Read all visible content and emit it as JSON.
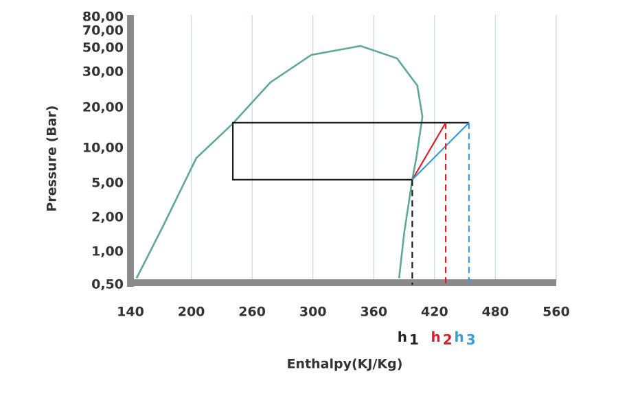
{
  "chart_data": {
    "type": "line",
    "xlabel": "Enthalpy(KJ/Kg)",
    "ylabel": "Pressure (Bar)",
    "xlim": [
      140,
      560
    ],
    "ylim": [
      0.5,
      80
    ],
    "xticks": [
      140,
      200,
      260,
      300,
      360,
      420,
      480,
      560
    ],
    "yticks": [
      {
        "value": 0.5,
        "label": "0,50"
      },
      {
        "value": 1,
        "label": "1,00"
      },
      {
        "value": 2,
        "label": "2,00"
      },
      {
        "value": 5,
        "label": "5,00"
      },
      {
        "value": 10,
        "label": "10,00"
      },
      {
        "value": 20,
        "label": "20,00"
      },
      {
        "value": 30,
        "label": "30,00"
      },
      {
        "value": 50,
        "label": "50,00"
      },
      {
        "value": 70,
        "label": "70,00"
      },
      {
        "value": 80,
        "label": "80,00"
      }
    ],
    "grid": true,
    "series": [
      {
        "color": "#5fa898",
        "dash": false,
        "x": [
          146,
          172,
          205,
          241,
          272,
          299,
          347,
          383,
          403,
          408,
          402,
          398,
          390,
          385
        ],
        "values": [
          0.6,
          1.74,
          8.6,
          16.1,
          27.1,
          44.3,
          52.4,
          41.4,
          26.2,
          17.8,
          8.6,
          5.5,
          1.54,
          0.6
        ]
      },
      {
        "color": "#1a1a1a",
        "dash": false,
        "x": [
          398,
          241,
          241,
          454
        ],
        "values": [
          5.5,
          5.5,
          16.3,
          16.3
        ]
      },
      {
        "color": "#d9202e",
        "dash": false,
        "x": [
          398,
          431
        ],
        "values": [
          5.5,
          16.3
        ]
      },
      {
        "color": "#3d9ad9",
        "dash": false,
        "x": [
          398,
          454,
          454
        ],
        "values": [
          5.5,
          16.3,
          16.3
        ]
      },
      {
        "color": "#1a1a1a",
        "dash": true,
        "x": [
          398,
          398
        ],
        "values": [
          5.5,
          0.5
        ]
      },
      {
        "color": "#d9202e",
        "dash": true,
        "x": [
          431,
          431
        ],
        "values": [
          16.3,
          0.5
        ]
      },
      {
        "color": "#3d9ad9",
        "dash": true,
        "x": [
          454,
          454
        ],
        "values": [
          16.3,
          0.5
        ]
      }
    ],
    "annotations": [
      {
        "text": "h",
        "sub": "1",
        "color": "#222222"
      },
      {
        "text": "h",
        "sub": "2",
        "color": "#d9202e"
      },
      {
        "text": "h",
        "sub": "3",
        "color": "#3d9ad9"
      }
    ]
  }
}
